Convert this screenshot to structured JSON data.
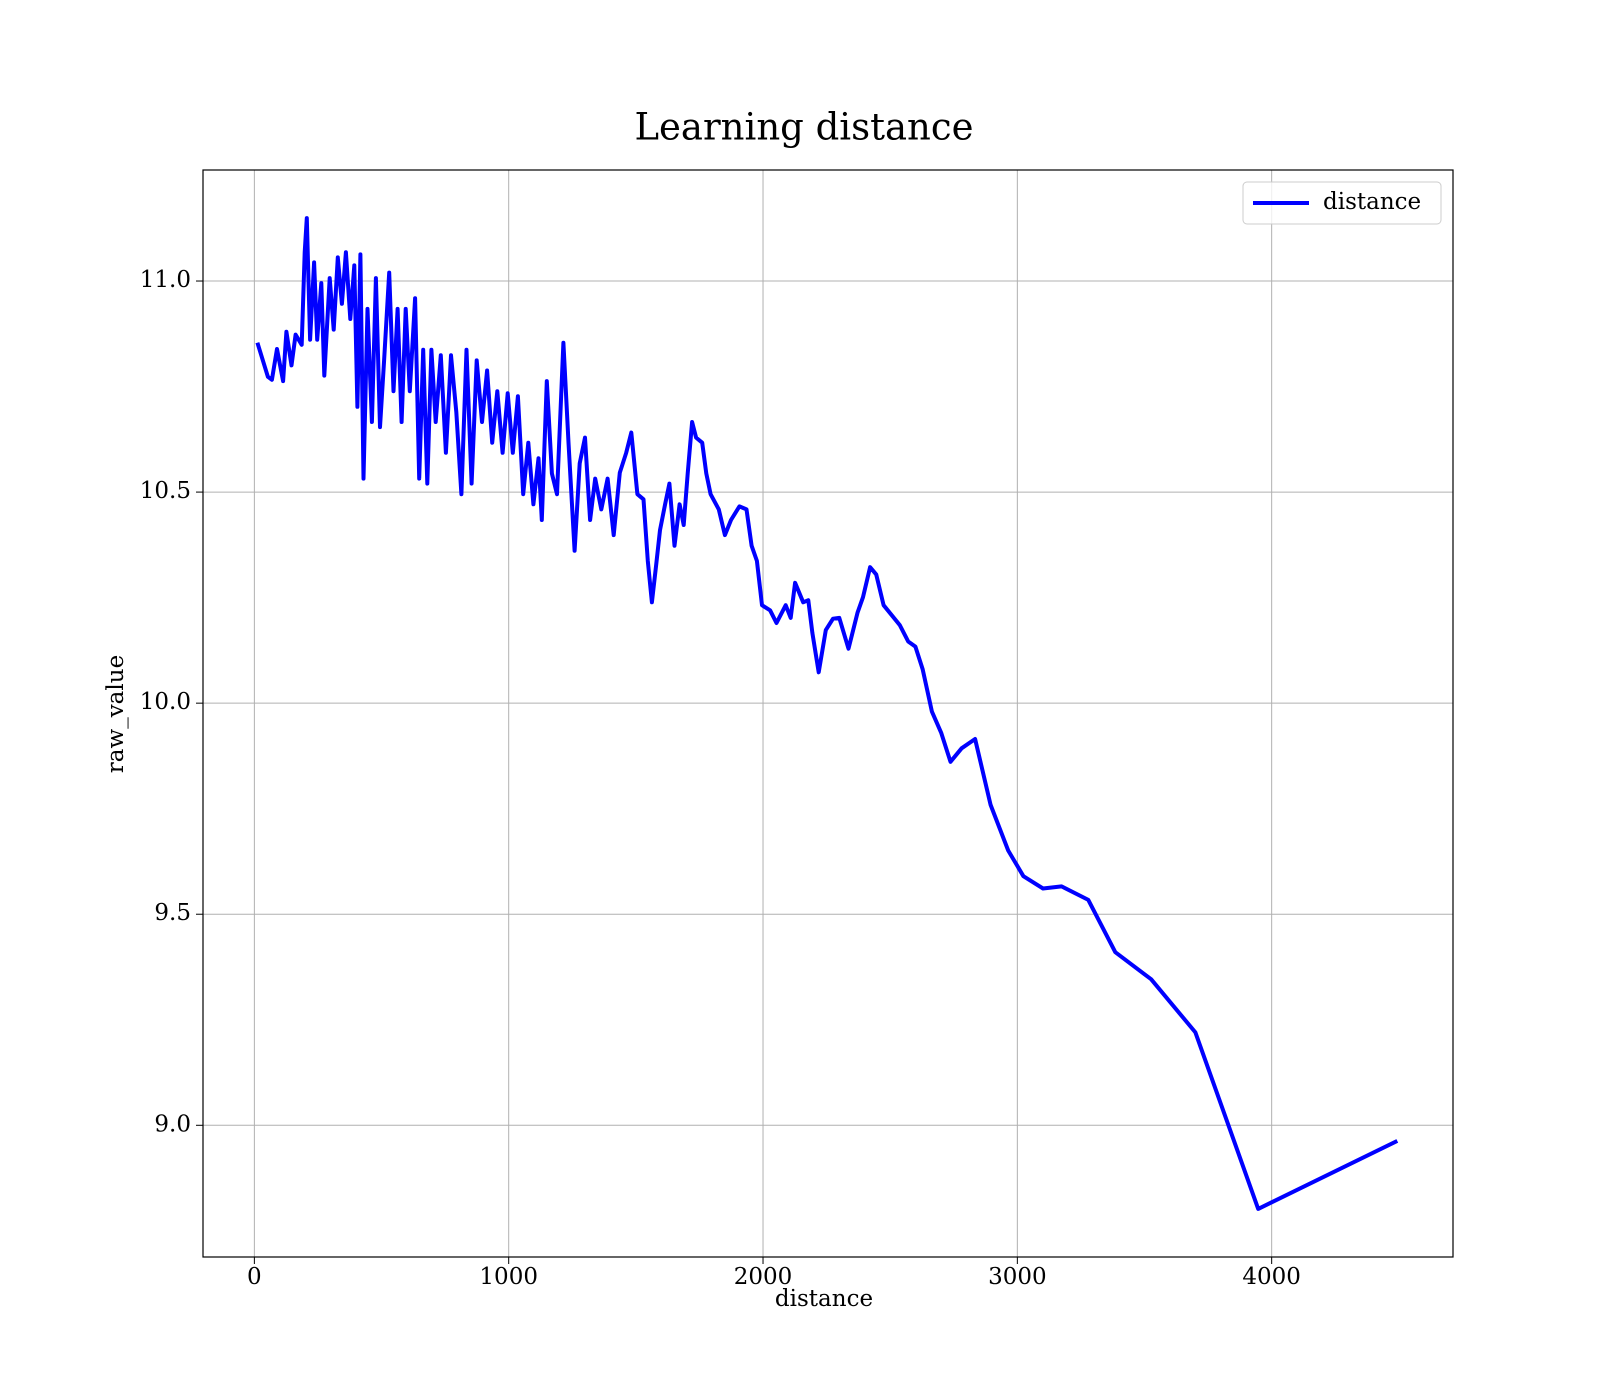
{
  "chart_data": {
    "type": "line",
    "title": "Learning distance",
    "x_label": "distance",
    "y_label": "raw_value",
    "x": [
      12,
      53,
      69,
      89,
      113,
      126,
      146,
      162,
      186,
      198,
      206,
      219,
      235,
      247,
      263,
      275,
      296,
      312,
      328,
      344,
      360,
      377,
      393,
      405,
      417,
      429,
      445,
      462,
      478,
      494,
      510,
      530,
      547,
      563,
      579,
      595,
      611,
      632,
      648,
      664,
      680,
      696,
      713,
      733,
      753,
      773,
      794,
      814,
      834,
      854,
      874,
      895,
      915,
      935,
      955,
      976,
      996,
      1016,
      1036,
      1057,
      1077,
      1097,
      1117,
      1130,
      1150,
      1170,
      1190,
      1215,
      1235,
      1259,
      1279,
      1300,
      1320,
      1340,
      1364,
      1389,
      1413,
      1437,
      1462,
      1482,
      1506,
      1530,
      1547,
      1563,
      1579,
      1595,
      1615,
      1632,
      1652,
      1672,
      1688,
      1704,
      1721,
      1737,
      1761,
      1777,
      1794,
      1826,
      1850,
      1874,
      1907,
      1935,
      1955,
      1976,
      1996,
      2028,
      2053,
      2089,
      2109,
      2126,
      2158,
      2178,
      2194,
      2219,
      2247,
      2275,
      2300,
      2336,
      2372,
      2393,
      2421,
      2445,
      2474,
      2538,
      2571,
      2599,
      2628,
      2664,
      2701,
      2737,
      2781,
      2834,
      2895,
      2964,
      3024,
      3101,
      3174,
      3279,
      3385,
      3526,
      3700,
      3947,
      4494
    ],
    "series": [
      {
        "name": "distance",
        "color": "#0000ff",
        "values": [
          10.854,
          10.773,
          10.766,
          10.839,
          10.763,
          10.88,
          10.8,
          10.873,
          10.849,
          11.068,
          11.149,
          10.861,
          11.044,
          10.861,
          10.995,
          10.776,
          11.007,
          10.885,
          11.056,
          10.946,
          11.068,
          10.91,
          11.037,
          10.702,
          11.063,
          10.532,
          10.934,
          10.666,
          11.007,
          10.654,
          10.812,
          11.02,
          10.739,
          10.934,
          10.666,
          10.934,
          10.739,
          10.959,
          10.532,
          10.837,
          10.52,
          10.837,
          10.666,
          10.824,
          10.593,
          10.824,
          10.69,
          10.495,
          10.837,
          10.52,
          10.812,
          10.666,
          10.788,
          10.617,
          10.739,
          10.593,
          10.734,
          10.593,
          10.727,
          10.495,
          10.617,
          10.471,
          10.58,
          10.434,
          10.763,
          10.544,
          10.495,
          10.854,
          10.617,
          10.361,
          10.568,
          10.629,
          10.434,
          10.532,
          10.459,
          10.532,
          10.398,
          10.546,
          10.593,
          10.641,
          10.495,
          10.483,
          10.337,
          10.239,
          10.324,
          10.41,
          10.471,
          10.52,
          10.373,
          10.471,
          10.422,
          10.544,
          10.666,
          10.629,
          10.617,
          10.544,
          10.495,
          10.459,
          10.398,
          10.434,
          10.466,
          10.459,
          10.373,
          10.337,
          10.232,
          10.22,
          10.19,
          10.232,
          10.202,
          10.285,
          10.239,
          10.244,
          10.166,
          10.073,
          10.173,
          10.2,
          10.202,
          10.129,
          10.215,
          10.251,
          10.322,
          10.305,
          10.232,
          10.185,
          10.146,
          10.134,
          10.08,
          9.98,
          9.929,
          9.861,
          9.893,
          9.915,
          9.759,
          9.651,
          9.59,
          9.561,
          9.566,
          9.534,
          9.41,
          9.346,
          9.22,
          8.802,
          8.963
        ]
      }
    ],
    "xlim": [
      -202,
      4713
    ],
    "ylim": [
      8.688,
      11.263
    ],
    "xticks": [
      0,
      1000,
      2000,
      3000,
      4000
    ],
    "yticks": [
      {
        "value": 9,
        "label": "9.0"
      },
      9.5,
      {
        "value": 10,
        "label": "10.0"
      },
      10.5,
      {
        "value": 11,
        "label": "11.0"
      }
    ],
    "grid": true,
    "legend": "upper right"
  }
}
